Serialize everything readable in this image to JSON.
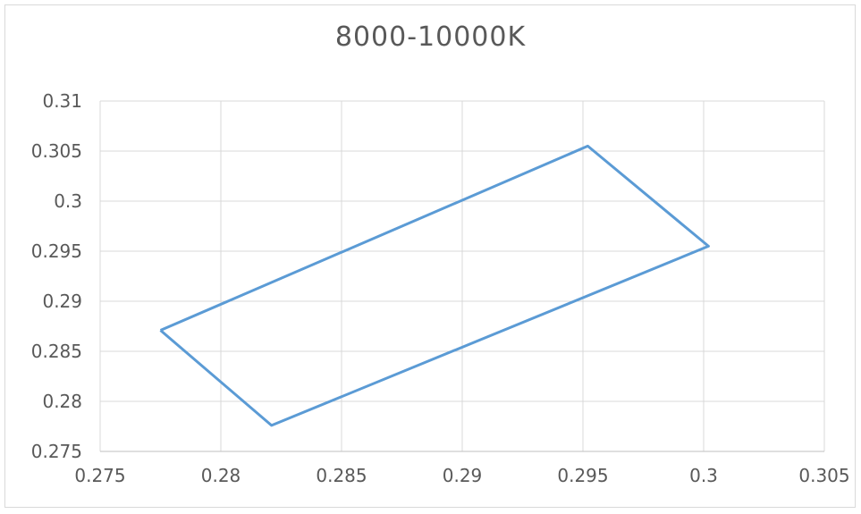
{
  "chart_data": {
    "type": "scatter",
    "title": "8000-10000K",
    "xlabel": "",
    "ylabel": "",
    "xlim": [
      0.275,
      0.305
    ],
    "ylim": [
      0.275,
      0.31
    ],
    "x_ticks": [
      "0.275",
      "0.28",
      "0.285",
      "0.29",
      "0.295",
      "0.3",
      "0.305"
    ],
    "y_ticks": [
      "0.275",
      "0.28",
      "0.285",
      "0.29",
      "0.295",
      "0.3",
      "0.305",
      "0.31"
    ],
    "grid": true,
    "legend": "none",
    "series": [
      {
        "line_color": "#5b9bd5",
        "points": [
          {
            "x": 0.2775,
            "y": 0.2871
          },
          {
            "x": 0.2952,
            "y": 0.3055
          },
          {
            "x": 0.3002,
            "y": 0.2955
          },
          {
            "x": 0.2821,
            "y": 0.2776
          },
          {
            "x": 0.2775,
            "y": 0.2871
          }
        ]
      }
    ]
  }
}
